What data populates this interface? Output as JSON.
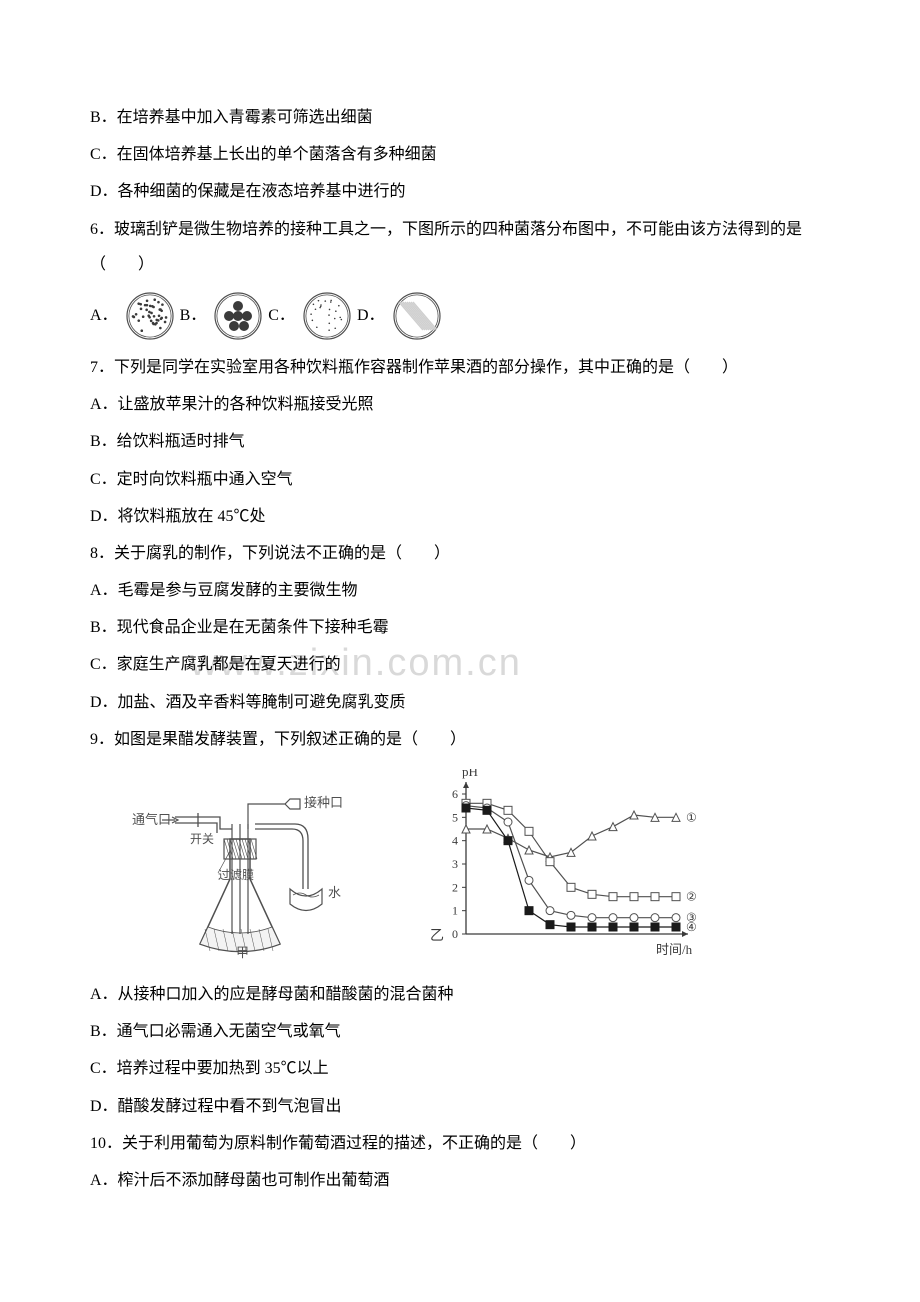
{
  "watermark": "www.zixin.com.cn",
  "lines": {
    "l1": "B．在培养基中加入青霉素可筛选出细菌",
    "l2": "C．在固体培养基上长出的单个菌落含有多种细菌",
    "l3": "D．各种细菌的保藏是在液态培养基中进行的",
    "q6_stem": "6．玻璃刮铲是微生物培养的接种工具之一，下图所示的四种菌落分布图中，不可能由该方法得到的是（　　）",
    "q6": {
      "A": "A．",
      "B": "B．",
      "C": "C．",
      "D": "D．"
    },
    "q7_stem": "7．下列是同学在实验室用各种饮料瓶作容器制作苹果酒的部分操作，其中正确的是（　　）",
    "q7A": "A．让盛放苹果汁的各种饮料瓶接受光照",
    "q7B": "B．给饮料瓶适时排气",
    "q7C": "C．定时向饮料瓶中通入空气",
    "q7D": "D．将饮料瓶放在 45℃处",
    "q8_stem": "8．关于腐乳的制作，下列说法不正确的是（　　）",
    "q8A": "A．毛霉是参与豆腐发酵的主要微生物",
    "q8B": "B．现代食品企业是在无菌条件下接种毛霉",
    "q8C": "C．家庭生产腐乳都是在夏天进行的",
    "q8D": "D．加盐、酒及辛香料等腌制可避免腐乳变质",
    "q9_stem": "9．如图是果醋发酵装置，下列叙述正确的是（　　）",
    "q9A": "A．从接种口加入的应是酵母菌和醋酸菌的混合菌种",
    "q9B": "B．通气口必需通入无菌空气或氧气",
    "q9C": "C．培养过程中要加热到 35℃以上",
    "q9D": "D．醋酸发酵过程中看不到气泡冒出",
    "q10_stem": "10．关于利用葡萄为原料制作葡萄酒过程的描述，不正确的是（　　）",
    "q10A": "A．榨汁后不添加酵母菌也可制作出葡萄酒"
  },
  "colors": {
    "text": "#000000",
    "bg": "#ffffff",
    "watermark": "#d9d9d9",
    "stroke": "#505050",
    "dot": "#3b3b3b",
    "grey": "#a8a8a8"
  },
  "q6_dishes": {
    "stroke_width": 1.2,
    "inner_ring_ratio": 0.88,
    "A": {
      "type": "many-small-dots",
      "dot_r": 1.3,
      "count": 40
    },
    "B": {
      "type": "big-dots",
      "dot_r": 5,
      "positions": [
        [
          24,
          14
        ],
        [
          15,
          24
        ],
        [
          24,
          24
        ],
        [
          33,
          24
        ],
        [
          20,
          34
        ],
        [
          30,
          34
        ]
      ]
    },
    "C": {
      "type": "sparse-dots",
      "dot_r": 0.8,
      "count": 22
    },
    "D": {
      "type": "streak",
      "streak_width": 10,
      "streak_color": "#cfcfcf"
    }
  },
  "flask_labels": {
    "inlet": "通气口",
    "switch": "开关",
    "filter": "过滤膜",
    "inoculate": "接种口",
    "water": "水",
    "jia": "甲",
    "yi": "乙"
  },
  "chart": {
    "xlabel": "时间/h",
    "ylabel": "pH",
    "ylim": [
      0,
      6
    ],
    "ytick_step": 1,
    "xrange": [
      0,
      10
    ],
    "background_color": "#ffffff",
    "axis_color": "#3b3b3b",
    "series": {
      "s1": {
        "label": "①",
        "marker": "triangle",
        "hollow": true,
        "color": "#505050",
        "points": [
          [
            0,
            4.5
          ],
          [
            1,
            4.5
          ],
          [
            2,
            4.1
          ],
          [
            3,
            3.6
          ],
          [
            4,
            3.3
          ],
          [
            5,
            3.5
          ],
          [
            6,
            4.2
          ],
          [
            7,
            4.6
          ],
          [
            8,
            5.1
          ],
          [
            9,
            5.0
          ],
          [
            10,
            5.0
          ]
        ]
      },
      "s2": {
        "label": "②",
        "marker": "square",
        "hollow": true,
        "color": "#505050",
        "points": [
          [
            0,
            5.6
          ],
          [
            1,
            5.6
          ],
          [
            2,
            5.3
          ],
          [
            3,
            4.4
          ],
          [
            4,
            3.1
          ],
          [
            5,
            2.0
          ],
          [
            6,
            1.7
          ],
          [
            7,
            1.6
          ],
          [
            8,
            1.6
          ],
          [
            9,
            1.6
          ],
          [
            10,
            1.6
          ]
        ]
      },
      "s3": {
        "label": "③",
        "marker": "circle",
        "hollow": true,
        "color": "#505050",
        "points": [
          [
            0,
            5.5
          ],
          [
            1,
            5.4
          ],
          [
            2,
            4.8
          ],
          [
            3,
            2.3
          ],
          [
            4,
            1.0
          ],
          [
            5,
            0.8
          ],
          [
            6,
            0.7
          ],
          [
            7,
            0.7
          ],
          [
            8,
            0.7
          ],
          [
            9,
            0.7
          ],
          [
            10,
            0.7
          ]
        ]
      },
      "s4": {
        "label": "④",
        "marker": "square",
        "hollow": false,
        "color": "#1a1a1a",
        "points": [
          [
            0,
            5.4
          ],
          [
            1,
            5.3
          ],
          [
            2,
            4.0
          ],
          [
            3,
            1.0
          ],
          [
            4,
            0.4
          ],
          [
            5,
            0.3
          ],
          [
            6,
            0.3
          ],
          [
            7,
            0.3
          ],
          [
            8,
            0.3
          ],
          [
            9,
            0.3
          ],
          [
            10,
            0.3
          ]
        ]
      }
    },
    "marker_size": 4,
    "line_width": 1.2
  }
}
